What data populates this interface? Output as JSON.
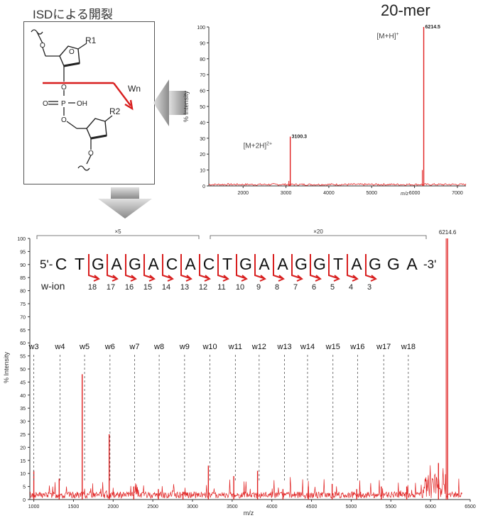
{
  "structure_panel": {
    "title": "ISDによる開裂",
    "labels": {
      "r1": "R1",
      "r2": "R2",
      "wn": "Wn",
      "o_left": "O",
      "p": "P",
      "oh": "OH",
      "o_top": "O",
      "o_bot": "O",
      "o_ring1": "O",
      "o_ring2": "O",
      "o_tail": "O"
    }
  },
  "top_chart": {
    "title": "20-mer",
    "chart_data": {
      "type": "line",
      "xlabel": "m/z",
      "ylabel": "% Intensity",
      "xlim": [
        1200,
        7200
      ],
      "ylim": [
        0,
        100
      ],
      "x_ticks": [
        2000,
        3000,
        4000,
        5000,
        6000,
        7000
      ],
      "y_ticks": [
        0,
        10,
        20,
        30,
        40,
        50,
        60,
        70,
        80,
        90,
        100
      ],
      "peaks": [
        {
          "x": 3100.3,
          "y": 31,
          "label": "3100.3",
          "annotation": "[M+2H]",
          "superscript": "2+"
        },
        {
          "x": 6214.5,
          "y": 100,
          "label": "6214.5",
          "annotation": "[M+H]",
          "superscript": "+"
        }
      ],
      "series_color": "#e02020"
    }
  },
  "bottom_chart": {
    "chart_data": {
      "type": "line",
      "xlabel": "m/z",
      "ylabel": "% Intensity",
      "xlim": [
        950,
        6500
      ],
      "ylim": [
        0,
        100
      ],
      "x_ticks": [
        1000,
        1500,
        2000,
        2500,
        3000,
        3500,
        4000,
        4500,
        5000,
        5500,
        6000,
        6500
      ],
      "y_ticks": [
        0,
        5,
        10,
        15,
        20,
        25,
        30,
        35,
        40,
        45,
        50,
        55,
        60,
        65,
        70,
        75,
        80,
        85,
        90,
        95,
        100
      ],
      "series_color": "#e02020",
      "peaks": [
        {
          "x": 1000,
          "y": 11
        },
        {
          "x": 1320,
          "y": 8
        },
        {
          "x": 1610,
          "y": 48
        },
        {
          "x": 1950,
          "y": 25
        },
        {
          "x": 2260,
          "y": 5
        },
        {
          "x": 2570,
          "y": 4
        },
        {
          "x": 2880,
          "y": 3
        },
        {
          "x": 3200,
          "y": 13
        },
        {
          "x": 3520,
          "y": 9
        },
        {
          "x": 3820,
          "y": 11
        },
        {
          "x": 4140,
          "y": 4
        },
        {
          "x": 4460,
          "y": 5
        },
        {
          "x": 4760,
          "y": 6
        },
        {
          "x": 5070,
          "y": 4
        },
        {
          "x": 5380,
          "y": 5
        },
        {
          "x": 5700,
          "y": 5
        },
        {
          "x": 6100,
          "y": 14
        },
        {
          "x": 6214.6,
          "y": 100,
          "label": "6214.6"
        }
      ],
      "w_markers": [
        {
          "label": "w3",
          "x": 1000
        },
        {
          "label": "w4",
          "x": 1330
        },
        {
          "label": "w5",
          "x": 1640
        },
        {
          "label": "w6",
          "x": 1960
        },
        {
          "label": "w7",
          "x": 2270
        },
        {
          "label": "w8",
          "x": 2580
        },
        {
          "label": "w9",
          "x": 2900
        },
        {
          "label": "w10",
          "x": 3220
        },
        {
          "label": "w11",
          "x": 3540
        },
        {
          "label": "w12",
          "x": 3840
        },
        {
          "label": "w13",
          "x": 4160
        },
        {
          "label": "w14",
          "x": 4450
        },
        {
          "label": "w15",
          "x": 4770
        },
        {
          "label": "w16",
          "x": 5080
        },
        {
          "label": "w17",
          "x": 5410
        },
        {
          "label": "w18",
          "x": 5720
        }
      ],
      "brackets": [
        {
          "label": "×5"
        },
        {
          "label": "×20"
        }
      ]
    },
    "sequence": {
      "prefix": "5'-",
      "suffix": "-3'",
      "bases": [
        "C",
        "T",
        "G",
        "A",
        "G",
        "A",
        "C",
        "A",
        "C",
        "T",
        "G",
        "A",
        "A",
        "G",
        "G",
        "T",
        "A",
        "G",
        "G",
        "A"
      ],
      "w_ion_label": "w-ion",
      "ion_numbers": [
        "18",
        "17",
        "16",
        "15",
        "14",
        "13",
        "12",
        "11",
        "10",
        "9",
        "8",
        "7",
        "6",
        "5",
        "4",
        "3"
      ]
    }
  }
}
